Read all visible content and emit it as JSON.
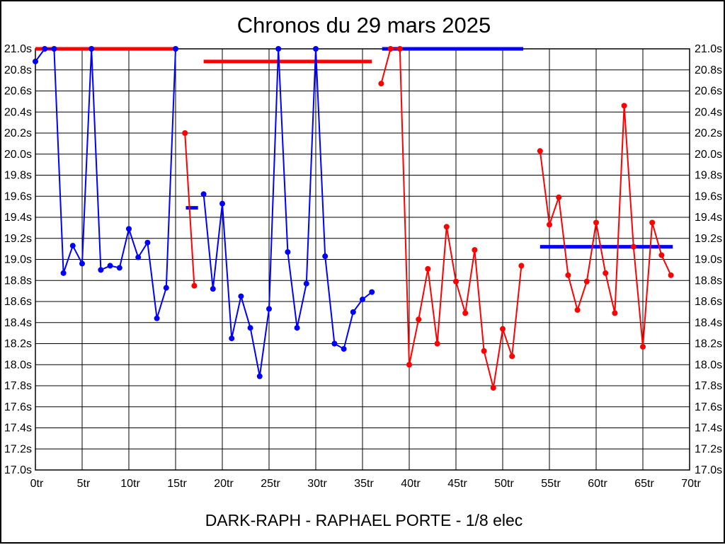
{
  "page": {
    "title": "Chronos du 29 mars 2025",
    "footer": "DARK-RAPH - RAPHAEL PORTE - 1/8 elec"
  },
  "chart_data": {
    "type": "line",
    "title": "Chronos du 29 mars 2025",
    "subtitle": "DARK-RAPH - RAPHAEL PORTE - 1/8 elec",
    "x_unit": "tr",
    "y_unit": "s",
    "xlim": [
      0,
      70
    ],
    "ylim": [
      17.0,
      21.0
    ],
    "x_tick_step": 5,
    "y_tick_step": 0.2,
    "grid": true,
    "legend": "none",
    "x_tick_labels": [
      "0tr",
      "5tr",
      "10tr",
      "15tr",
      "20tr",
      "25tr",
      "30tr",
      "35tr",
      "40tr",
      "45tr",
      "50tr",
      "55tr",
      "60tr",
      "65tr",
      "70tr"
    ],
    "y_tick_labels": [
      "21.0s",
      "20.8s",
      "20.6s",
      "20.4s",
      "20.2s",
      "20.0s",
      "19.8s",
      "19.6s",
      "19.4s",
      "19.2s",
      "19.0s",
      "18.8s",
      "18.6s",
      "18.4s",
      "18.2s",
      "18.0s",
      "17.8s",
      "17.6s",
      "17.4s",
      "17.2s",
      "17.0s"
    ],
    "series": [
      {
        "name": "blue-run",
        "color": "#0000ff",
        "segments": [
          [
            [
              0,
              20.88
            ],
            [
              1,
              21.0
            ],
            [
              2,
              21.0
            ],
            [
              3,
              18.87
            ],
            [
              4,
              19.13
            ],
            [
              5,
              18.96
            ],
            [
              6,
              21.0
            ],
            [
              7,
              18.9
            ],
            [
              8,
              18.94
            ],
            [
              9,
              18.92
            ],
            [
              10,
              19.29
            ],
            [
              11,
              19.02
            ],
            [
              12,
              19.16
            ],
            [
              13,
              18.44
            ],
            [
              14,
              18.73
            ],
            [
              15,
              21.0
            ]
          ],
          [
            [
              18,
              19.62
            ],
            [
              19,
              18.72
            ],
            [
              20,
              19.53
            ],
            [
              21,
              18.25
            ],
            [
              22,
              18.65
            ],
            [
              23,
              18.35
            ],
            [
              24,
              17.89
            ],
            [
              25,
              18.53
            ],
            [
              26,
              21.0
            ],
            [
              27,
              19.07
            ],
            [
              28,
              18.35
            ],
            [
              29,
              18.77
            ],
            [
              30,
              21.0
            ],
            [
              31,
              19.03
            ],
            [
              32,
              18.2
            ],
            [
              33,
              18.15
            ],
            [
              34,
              18.5
            ],
            [
              35,
              18.62
            ],
            [
              36,
              18.69
            ]
          ]
        ]
      },
      {
        "name": "red-run",
        "color": "#ff0000",
        "segments": [
          [
            [
              16,
              20.2
            ],
            [
              17,
              18.75
            ]
          ],
          [
            [
              37,
              20.67
            ],
            [
              38,
              21.0
            ],
            [
              39,
              21.0
            ],
            [
              40,
              18.0
            ],
            [
              41,
              18.43
            ],
            [
              42,
              18.91
            ],
            [
              43,
              18.2
            ],
            [
              44,
              19.31
            ],
            [
              45,
              18.79
            ],
            [
              46,
              18.49
            ],
            [
              47,
              19.09
            ],
            [
              48,
              18.13
            ],
            [
              49,
              17.78
            ],
            [
              50,
              18.34
            ],
            [
              51,
              18.08
            ],
            [
              52,
              18.94
            ]
          ],
          [
            [
              54,
              20.03
            ],
            [
              55,
              19.33
            ],
            [
              56,
              19.59
            ],
            [
              57,
              18.85
            ],
            [
              58,
              18.52
            ],
            [
              59,
              18.79
            ],
            [
              60,
              19.35
            ],
            [
              61,
              18.87
            ],
            [
              62,
              18.49
            ],
            [
              63,
              20.46
            ],
            [
              64,
              19.12
            ],
            [
              65,
              18.17
            ],
            [
              66,
              19.35
            ],
            [
              67,
              19.04
            ],
            [
              68,
              18.85
            ]
          ]
        ]
      }
    ],
    "reference_lines": [
      {
        "name": "red-avg-bar-1",
        "color": "#ff0000",
        "y": 21.0,
        "x1": 0,
        "x2": 15.2
      },
      {
        "name": "blue-avg-bar-1",
        "color": "#0000ff",
        "y": 19.49,
        "x1": 16.1,
        "x2": 17.4
      },
      {
        "name": "red-avg-bar-2",
        "color": "#ff0000",
        "y": 20.88,
        "x1": 18.0,
        "x2": 36.0
      },
      {
        "name": "blue-avg-bar-2",
        "color": "#0000ff",
        "y": 21.0,
        "x1": 37.1,
        "x2": 52.2
      },
      {
        "name": "blue-avg-bar-3",
        "color": "#0000ff",
        "y": 19.12,
        "x1": 54.0,
        "x2": 68.2
      }
    ]
  }
}
